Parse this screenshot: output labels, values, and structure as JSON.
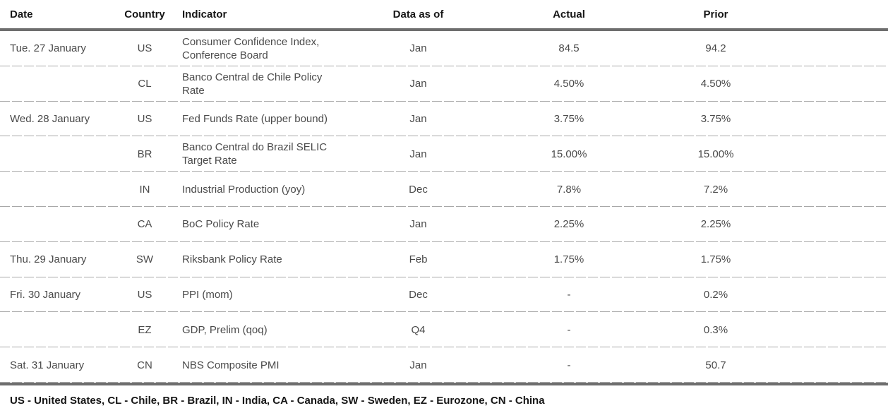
{
  "table": {
    "columns": [
      {
        "key": "date",
        "label": "Date"
      },
      {
        "key": "country",
        "label": "Country"
      },
      {
        "key": "indicator",
        "label": "Indicator"
      },
      {
        "key": "data_as_of",
        "label": "Data as of"
      },
      {
        "key": "actual",
        "label": "Actual"
      },
      {
        "key": "prior",
        "label": "Prior"
      }
    ],
    "rows": [
      {
        "date": "Tue. 27 January",
        "country": "US",
        "indicator": "Consumer Confidence Index, Conference Board",
        "data_as_of": "Jan",
        "actual": "84.5",
        "prior": "94.2"
      },
      {
        "date": "",
        "country": "CL",
        "indicator": "Banco Central de Chile Policy Rate",
        "data_as_of": "Jan",
        "actual": "4.50%",
        "prior": "4.50%"
      },
      {
        "date": "Wed. 28 January",
        "country": "US",
        "indicator": "Fed Funds Rate (upper bound)",
        "data_as_of": "Jan",
        "actual": "3.75%",
        "prior": "3.75%"
      },
      {
        "date": "",
        "country": "BR",
        "indicator": "Banco Central do Brazil SELIC Target Rate",
        "data_as_of": "Jan",
        "actual": "15.00%",
        "prior": "15.00%"
      },
      {
        "date": "",
        "country": "IN",
        "indicator": "Industrial Production (yoy)",
        "data_as_of": "Dec",
        "actual": "7.8%",
        "prior": "7.2%"
      },
      {
        "date": "",
        "country": "CA",
        "indicator": "BoC Policy Rate",
        "data_as_of": "Jan",
        "actual": "2.25%",
        "prior": "2.25%"
      },
      {
        "date": "Thu. 29 January",
        "country": "SW",
        "indicator": "Riksbank Policy Rate",
        "data_as_of": "Feb",
        "actual": "1.75%",
        "prior": "1.75%"
      },
      {
        "date": "Fri. 30 January",
        "country": "US",
        "indicator": "PPI (mom)",
        "data_as_of": "Dec",
        "actual": "-",
        "prior": "0.2%"
      },
      {
        "date": "",
        "country": "EZ",
        "indicator": "GDP, Prelim (qoq)",
        "data_as_of": "Q4",
        "actual": "-",
        "prior": "0.3%"
      },
      {
        "date": "Sat. 31 January",
        "country": "CN",
        "indicator": "NBS Composite PMI",
        "data_as_of": "Jan",
        "actual": "-",
        "prior": "50.7"
      }
    ]
  },
  "footer": {
    "legend": "US - United States, CL - Chile, BR - Brazil, IN - India, CA - Canada, SW - Sweden, EZ - Eurozone, CN - China"
  },
  "colors": {
    "background": "#ffffff",
    "header_text": "#161616",
    "body_text": "#4a4a4a",
    "thick_rule": "#6e6e6e",
    "row_divider": "#a8a8a8"
  }
}
